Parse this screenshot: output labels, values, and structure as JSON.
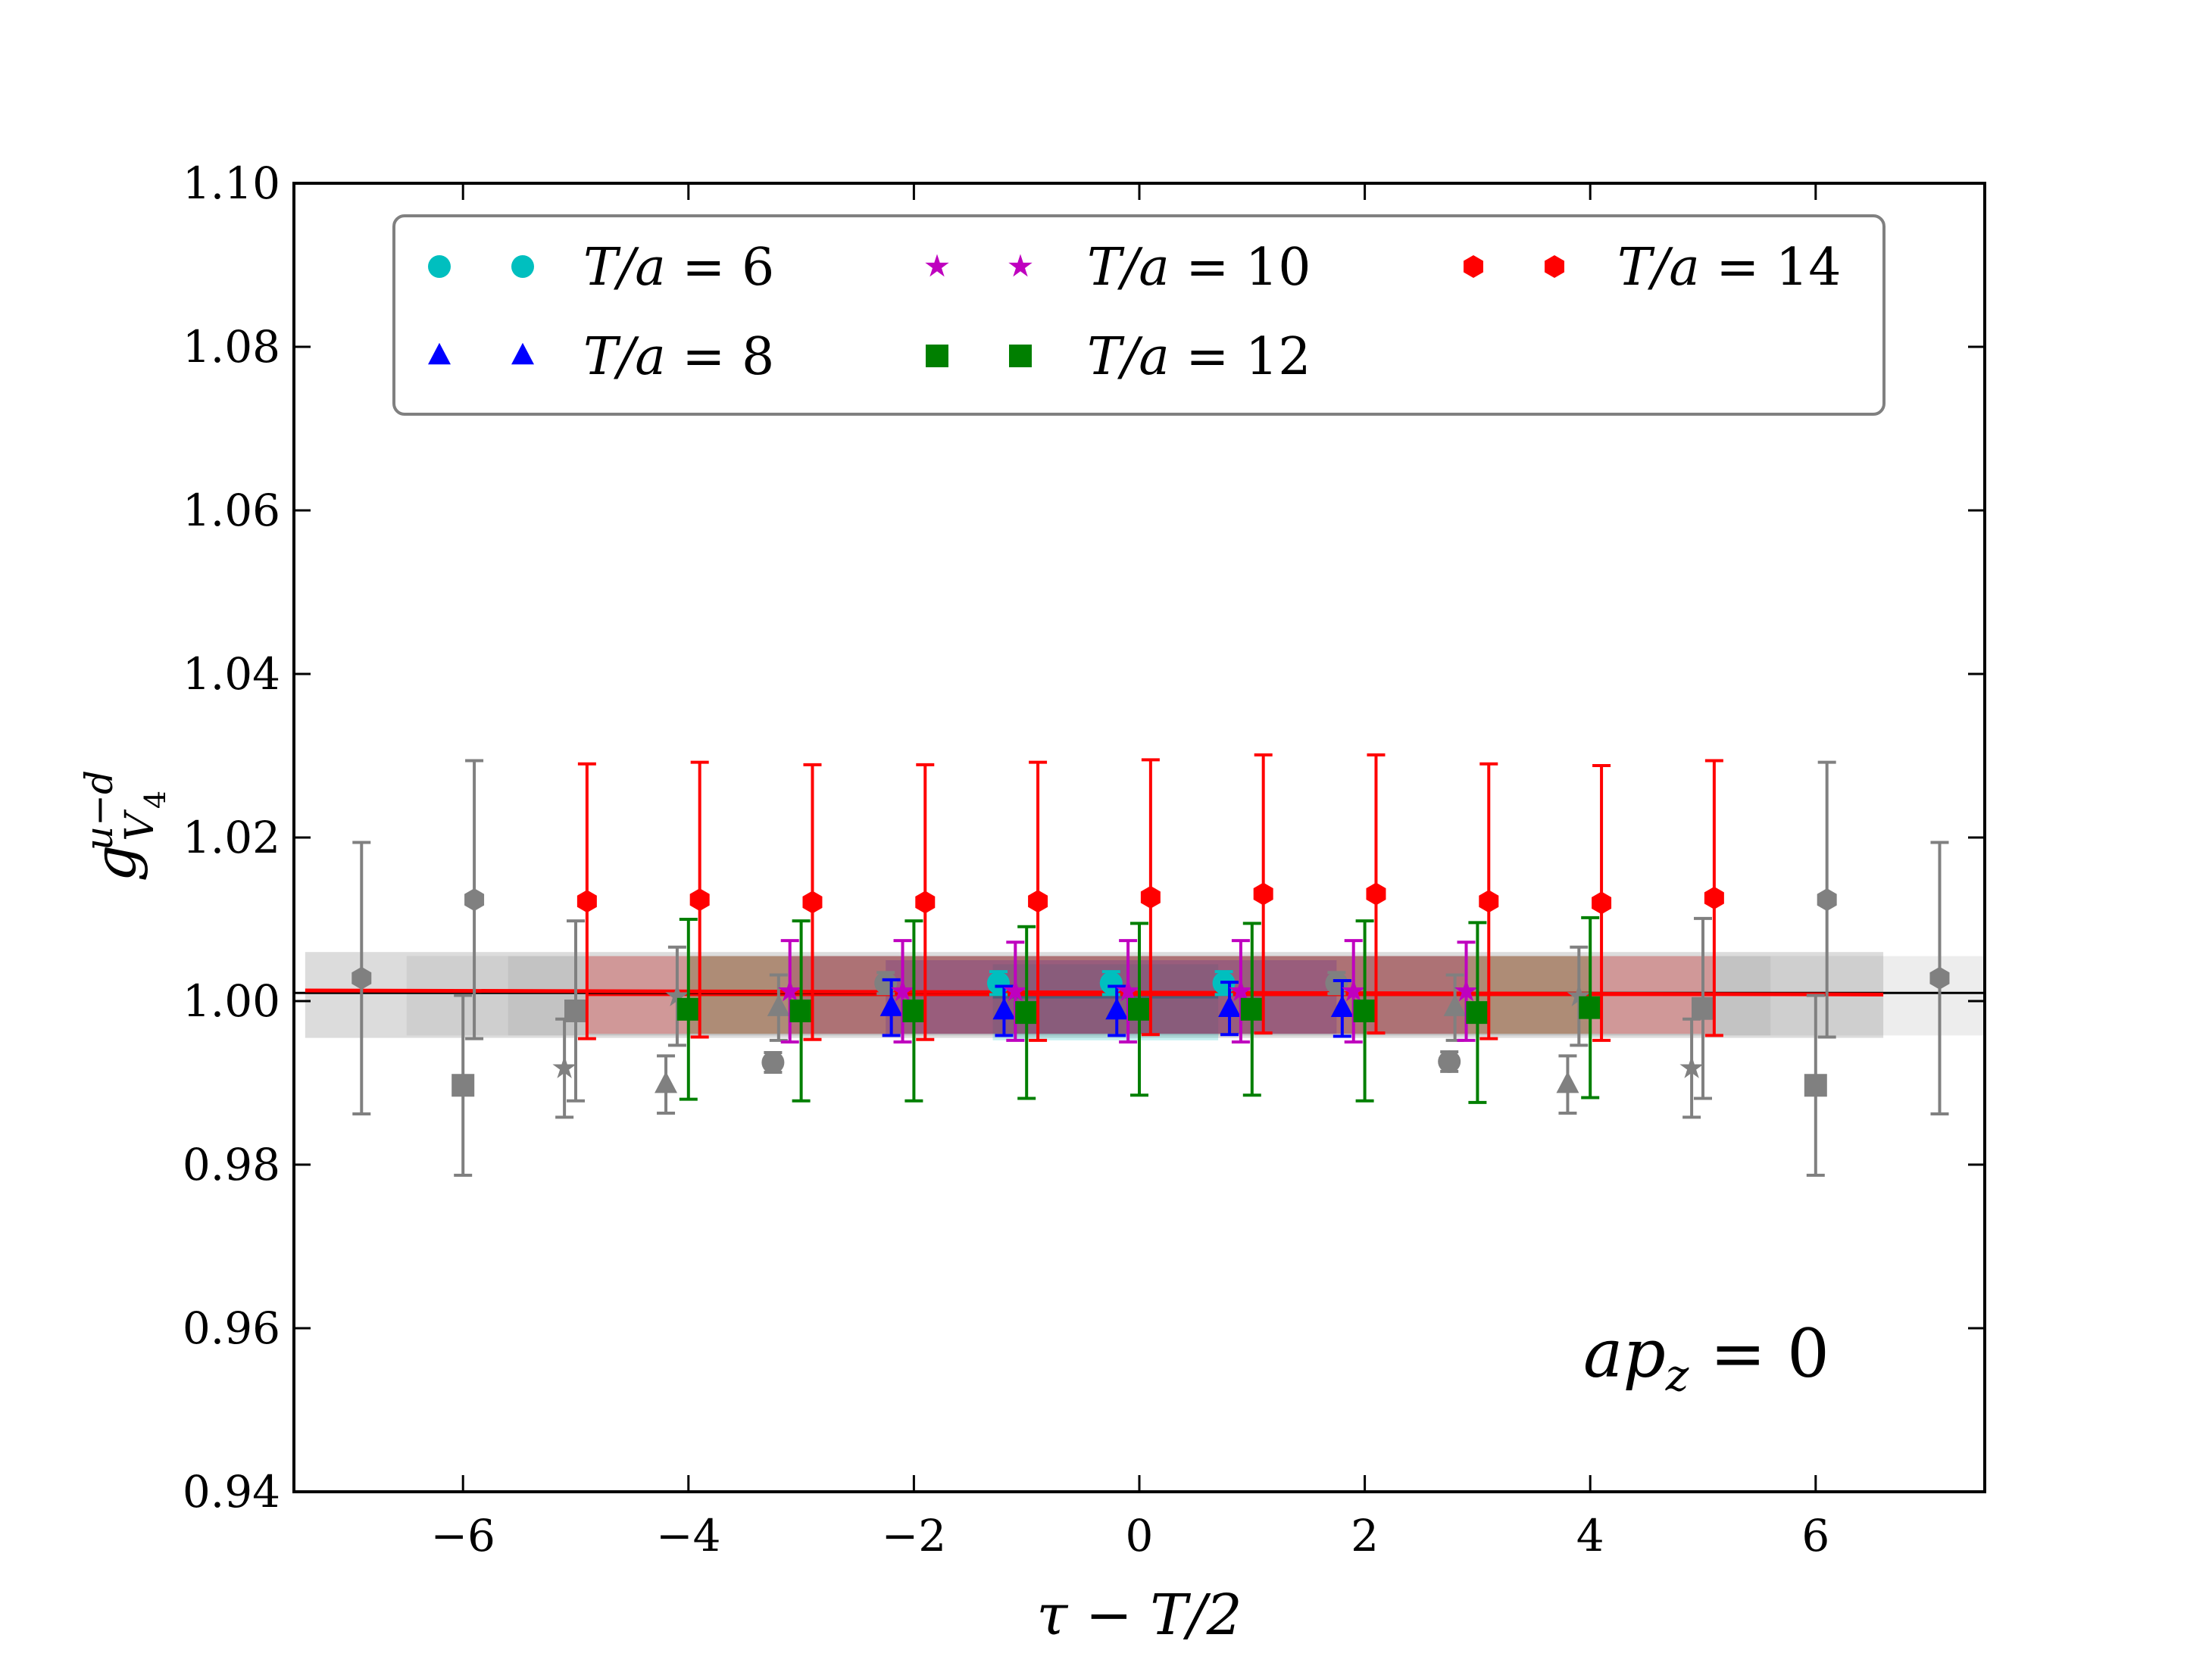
{
  "chart_data": {
    "type": "scatter",
    "xlabel": "τ − T/2",
    "ylabel_main": "g",
    "ylabel_sup": "u−d",
    "ylabel_sub": "V",
    "ylabel_subsub": "4",
    "annotation_lhs": "ap",
    "annotation_sub": "z",
    "annotation_rhs": " = 0",
    "xlim": [
      -7.5,
      7.5
    ],
    "ylim": [
      0.94,
      1.1
    ],
    "xticks": [
      -6,
      -4,
      -2,
      0,
      2,
      4,
      6
    ],
    "xtick_labels": [
      "−6",
      "−4",
      "−2",
      "0",
      "2",
      "4",
      "6"
    ],
    "yticks": [
      0.94,
      0.96,
      0.98,
      1.0,
      1.02,
      1.04,
      1.06,
      1.08,
      1.1
    ],
    "ytick_labels": [
      "0.94",
      "0.96",
      "0.98",
      "1.00",
      "1.02",
      "1.04",
      "1.06",
      "1.08",
      "1.10"
    ],
    "reference_line": 1.001,
    "series": [
      {
        "name": "T/a = 6",
        "label_lhs": "T/a",
        "label_rhs": " = 6",
        "color": "#00bfbf",
        "marker": "circle",
        "fit": {
          "x0": -1.3,
          "x1": 0.7,
          "center": 1.0005,
          "lo": 0.9952,
          "hi": 1.0045
        },
        "fit_points": [
          {
            "x": -1.25,
            "y": 1.0022,
            "yerr": 0.0014
          },
          {
            "x": -0.25,
            "y": 1.0022,
            "yerr": 0.0014
          },
          {
            "x": 0.75,
            "y": 1.0022,
            "yerr": 0.0014
          }
        ],
        "excluded": [
          {
            "x": -3.25,
            "y": 0.9925,
            "yerr": 0.0012
          },
          {
            "x": -2.25,
            "y": 1.0022,
            "yerr": 0.0013
          },
          {
            "x": 1.75,
            "y": 1.0022,
            "yerr": 0.0013
          },
          {
            "x": 2.75,
            "y": 0.9926,
            "yerr": 0.0012
          }
        ]
      },
      {
        "name": "T/a = 8",
        "label_lhs": "T/a",
        "label_rhs": " = 8",
        "color": "#0000ff",
        "marker": "triangle",
        "fit": {
          "x0": -2.25,
          "x1": 1.75,
          "center": 1.0008,
          "lo": 0.996,
          "hi": 1.005
        },
        "fit_points": [
          {
            "x": -2.2,
            "y": 0.9992,
            "yerr": 0.0034
          },
          {
            "x": -1.2,
            "y": 0.9988,
            "yerr": 0.003
          },
          {
            "x": -0.2,
            "y": 0.9988,
            "yerr": 0.003
          },
          {
            "x": 0.8,
            "y": 0.9991,
            "yerr": 0.0032
          },
          {
            "x": 1.8,
            "y": 0.9991,
            "yerr": 0.0034
          }
        ],
        "excluded": [
          {
            "x": -4.2,
            "y": 0.9898,
            "yerr": 0.0035
          },
          {
            "x": -3.2,
            "y": 0.9992,
            "yerr": 0.004
          },
          {
            "x": 2.8,
            "y": 0.9992,
            "yerr": 0.004
          },
          {
            "x": 3.8,
            "y": 0.9898,
            "yerr": 0.0035
          }
        ]
      },
      {
        "name": "T/a = 10",
        "label_lhs": "T/a",
        "label_rhs": " = 10",
        "color": "#bf00bf",
        "marker": "star",
        "fit": {
          "x0": -3.1,
          "x1": 2.9,
          "center": 1.0008,
          "lo": 0.996,
          "hi": 1.0055
        },
        "fit_points": [
          {
            "x": -3.1,
            "y": 1.0012,
            "yerr": 0.0062
          },
          {
            "x": -2.1,
            "y": 1.0012,
            "yerr": 0.0062
          },
          {
            "x": -1.1,
            "y": 1.0012,
            "yerr": 0.006
          },
          {
            "x": -0.1,
            "y": 1.0012,
            "yerr": 0.0062
          },
          {
            "x": 0.9,
            "y": 1.0012,
            "yerr": 0.0062
          },
          {
            "x": 1.9,
            "y": 1.0012,
            "yerr": 0.0062
          },
          {
            "x": 2.9,
            "y": 1.0012,
            "yerr": 0.006
          }
        ],
        "excluded": [
          {
            "x": -5.1,
            "y": 0.9918,
            "yerr": 0.006
          },
          {
            "x": -4.1,
            "y": 1.0006,
            "yerr": 0.006
          },
          {
            "x": 3.9,
            "y": 1.0006,
            "yerr": 0.006
          },
          {
            "x": 4.9,
            "y": 0.9918,
            "yerr": 0.006
          }
        ]
      },
      {
        "name": "T/a = 12",
        "label_lhs": "T/a",
        "label_rhs": " = 12",
        "color": "#007f00",
        "marker": "square",
        "fit": {
          "x0": -4.0,
          "x1": 4.0,
          "center": 1.0008,
          "lo": 0.996,
          "hi": 1.0055
        },
        "fit_points": [
          {
            "x": -4.0,
            "y": 0.999,
            "yerr": 0.011
          },
          {
            "x": -3.0,
            "y": 0.9988,
            "yerr": 0.011
          },
          {
            "x": -2.0,
            "y": 0.9988,
            "yerr": 0.011
          },
          {
            "x": -1.0,
            "y": 0.9986,
            "yerr": 0.0105
          },
          {
            "x": 0.0,
            "y": 0.999,
            "yerr": 0.0105
          },
          {
            "x": 1.0,
            "y": 0.999,
            "yerr": 0.0105
          },
          {
            "x": 2.0,
            "y": 0.9988,
            "yerr": 0.011
          },
          {
            "x": 3.0,
            "y": 0.9986,
            "yerr": 0.011
          },
          {
            "x": 4.0,
            "y": 0.9992,
            "yerr": 0.011
          }
        ],
        "excluded": [
          {
            "x": -6.0,
            "y": 0.9897,
            "yerr": 0.011
          },
          {
            "x": -5.0,
            "y": 0.9988,
            "yerr": 0.011
          },
          {
            "x": 5.0,
            "y": 0.9991,
            "yerr": 0.011
          },
          {
            "x": 6.0,
            "y": 0.9897,
            "yerr": 0.011
          }
        ]
      },
      {
        "name": "T/a = 14",
        "label_lhs": "T/a",
        "label_rhs": " = 14",
        "color": "#ff0000",
        "marker": "hexagon",
        "fit": {
          "x0": -4.9,
          "x1": 5.1,
          "center": 1.0008,
          "lo": 0.996,
          "hi": 1.0055
        },
        "fit_points": [
          {
            "x": -4.9,
            "y": 1.0122,
            "yerr": 0.0168
          },
          {
            "x": -3.9,
            "y": 1.0124,
            "yerr": 0.0168
          },
          {
            "x": -2.9,
            "y": 1.0121,
            "yerr": 0.0168
          },
          {
            "x": -1.9,
            "y": 1.0121,
            "yerr": 0.0168
          },
          {
            "x": -0.9,
            "y": 1.0122,
            "yerr": 0.017
          },
          {
            "x": 0.1,
            "y": 1.0127,
            "yerr": 0.0168
          },
          {
            "x": 1.1,
            "y": 1.0131,
            "yerr": 0.017
          },
          {
            "x": 2.1,
            "y": 1.0131,
            "yerr": 0.017
          },
          {
            "x": 3.1,
            "y": 1.0122,
            "yerr": 0.0168
          },
          {
            "x": 4.1,
            "y": 1.012,
            "yerr": 0.0168
          },
          {
            "x": 5.1,
            "y": 1.0126,
            "yerr": 0.0168
          }
        ],
        "excluded": [
          {
            "x": -6.9,
            "y": 1.0028,
            "yerr": 0.0166
          },
          {
            "x": -5.9,
            "y": 1.0124,
            "yerr": 0.017
          },
          {
            "x": 6.1,
            "y": 1.0124,
            "yerr": 0.0168
          },
          {
            "x": 7.1,
            "y": 1.0028,
            "yerr": 0.0166
          }
        ]
      }
    ],
    "combined_fit": {
      "x0": -7.4,
      "x1": 6.6,
      "center": 1.0008,
      "lo": 0.9955,
      "hi": 1.006
    },
    "excluded_color": "#808080",
    "legend": {
      "location": "upper-center",
      "columns": 3,
      "frame_color": "#808080"
    }
  }
}
